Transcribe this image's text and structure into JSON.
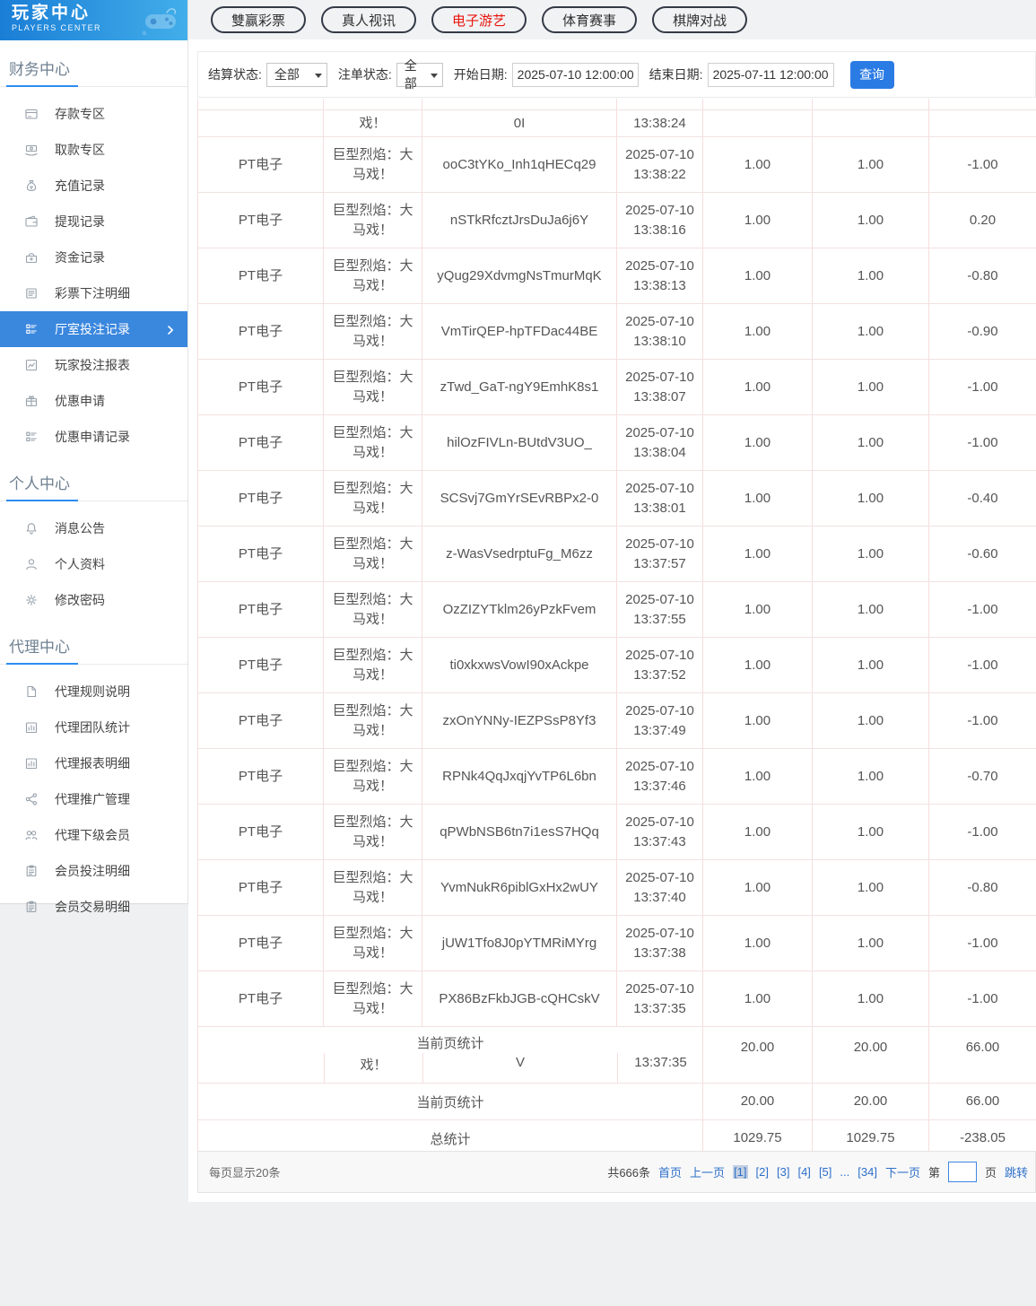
{
  "logo": {
    "title": "玩家中心",
    "subtitle": "PLAYERS CENTER"
  },
  "colors": {
    "brand_gradient_start": "#1a7ed6",
    "brand_gradient_end": "#42aeea",
    "active_sidebar_blue": "#3a87de",
    "accent_blue": "#2d8cf0",
    "search_button_blue": "#2b7be4",
    "nav_active_red": "#e8150c",
    "link_blue": "#2d6fc8",
    "table_border_pink": "#f6dede"
  },
  "top_nav": [
    {
      "name": "lottery",
      "label": "雙赢彩票",
      "active": false
    },
    {
      "name": "live-casino",
      "label": "真人视讯",
      "active": false
    },
    {
      "name": "electronic-games",
      "label": "电子游艺",
      "active": true
    },
    {
      "name": "sports",
      "label": "体育赛事",
      "active": false
    },
    {
      "name": "board-games",
      "label": "棋牌对战",
      "active": false
    }
  ],
  "filters": {
    "settle_status_label": "结算状态:",
    "settle_status_value": "全部",
    "order_status_label": "注单状态:",
    "order_status_value": "全部",
    "start_date_label": "开始日期:",
    "start_date_value": "2025-07-10 12:00:00",
    "end_date_label": "结束日期:",
    "end_date_value": "2025-07-11 12:00:00",
    "search_button": "查询"
  },
  "sidebar": {
    "sections": [
      {
        "title": "财务中心",
        "items": [
          {
            "name": "deposit-zone",
            "icon": "card-icon",
            "label": "存款专区"
          },
          {
            "name": "withdraw-zone",
            "icon": "hand-money-icon",
            "label": "取款专区"
          },
          {
            "name": "recharge-records",
            "icon": "moneybag-icon",
            "label": "充值记录"
          },
          {
            "name": "withdraw-records",
            "icon": "wallet-icon",
            "label": "提现记录"
          },
          {
            "name": "funds-records",
            "icon": "purse-icon",
            "label": "资金记录"
          },
          {
            "name": "lottery-bet-details",
            "icon": "document-icon",
            "label": "彩票下注明细"
          },
          {
            "name": "hall-bet-records",
            "icon": "list-icon",
            "label": "厅室投注记录",
            "active": true
          },
          {
            "name": "player-bet-report",
            "icon": "chart-icon",
            "label": "玩家投注报表"
          },
          {
            "name": "promo-apply",
            "icon": "gift-icon",
            "label": "优惠申请"
          },
          {
            "name": "promo-apply-records",
            "icon": "list-icon",
            "label": "优惠申请记录"
          }
        ]
      },
      {
        "title": "个人中心",
        "items": [
          {
            "name": "messages",
            "icon": "bell-icon",
            "label": "消息公告"
          },
          {
            "name": "profile",
            "icon": "user-icon",
            "label": "个人资料"
          },
          {
            "name": "change-password",
            "icon": "gear-icon",
            "label": "修改密码"
          }
        ]
      },
      {
        "title": "代理中心",
        "items": [
          {
            "name": "agent-rules",
            "icon": "file-icon",
            "label": "代理规则说明"
          },
          {
            "name": "agent-team-stats",
            "icon": "framed-chart-icon",
            "label": "代理团队统计"
          },
          {
            "name": "agent-report-details",
            "icon": "framed-chart-icon",
            "label": "代理报表明细"
          },
          {
            "name": "agent-promotion",
            "icon": "share-icon",
            "label": "代理推广管理"
          },
          {
            "name": "agent-sub-members",
            "icon": "users-icon",
            "label": "代理下级会员"
          },
          {
            "name": "member-bet-details",
            "icon": "clipboard-icon",
            "label": "会员投注明细"
          },
          {
            "name": "member-trade-details",
            "icon": "clipboard-icon",
            "label": "会员交易明细"
          }
        ]
      }
    ]
  },
  "table": {
    "row_shared": {
      "platform": "PT电子",
      "game": "巨型烈焰：大马戏！",
      "date": "2025-07-10",
      "bet": "1.00",
      "valid": "1.00"
    },
    "partial_row": {
      "game_fragment": "戏！",
      "order_fragment": "0I",
      "time_fragment": "13:38:24"
    },
    "rows": [
      {
        "order_id": "ooC3tYKo_Inh1qHECq29",
        "time": "13:38:22",
        "result": "-1.00"
      },
      {
        "order_id": "nSTkRfcztJrsDuJa6j6Y",
        "time": "13:38:16",
        "result": "0.20"
      },
      {
        "order_id": "yQug29XdvmgNsTmurMqK",
        "time": "13:38:13",
        "result": "-0.80"
      },
      {
        "order_id": "VmTirQEP-hpTFDac44BE",
        "time": "13:38:10",
        "result": "-0.90"
      },
      {
        "order_id": "zTwd_GaT-ngY9EmhK8s1",
        "time": "13:38:07",
        "result": "-1.00"
      },
      {
        "order_id": "hilOzFIVLn-BUtdV3UO_",
        "time": "13:38:04",
        "result": "-1.00"
      },
      {
        "order_id": "SCSvj7GmYrSEvRBPx2-0",
        "time": "13:38:01",
        "result": "-0.40"
      },
      {
        "order_id": "z-WasVsedrptuFg_M6zz",
        "time": "13:37:57",
        "result": "-0.60"
      },
      {
        "order_id": "OzZIZYTklm26yPzkFvem",
        "time": "13:37:55",
        "result": "-1.00"
      },
      {
        "order_id": "ti0xkxwsVowI90xAckpe",
        "time": "13:37:52",
        "result": "-1.00"
      },
      {
        "order_id": "zxOnYNNy-IEZPSsP8Yf3",
        "time": "13:37:49",
        "result": "-1.00"
      },
      {
        "order_id": "RPNk4QqJxqjYvTP6L6bn",
        "time": "13:37:46",
        "result": "-0.70"
      },
      {
        "order_id": "qPWbNSB6tn7i1esS7HQq",
        "time": "13:37:43",
        "result": "-1.00"
      },
      {
        "order_id": "YvmNukR6piblGxHx2wUY",
        "time": "13:37:40",
        "result": "-0.80"
      },
      {
        "order_id": "jUW1Tfo8J0pYTMRiMYrg",
        "time": "13:37:38",
        "result": "-1.00"
      },
      {
        "order_id": "PX86BzFkbJGB-cQHCskV",
        "time": "13:37:35",
        "result": "-1.00"
      }
    ],
    "glitch_row": {
      "label": "当前页统计",
      "bet": "20.00",
      "valid": "20.00",
      "result": "66.00",
      "ghost": {
        "game": "戏！",
        "order": "V",
        "time": "13:37:35"
      }
    },
    "page_total": {
      "label": "当前页统计",
      "bet": "20.00",
      "valid": "20.00",
      "result": "66.00"
    },
    "grand_total": {
      "label": "总统计",
      "bet": "1029.75",
      "valid": "1029.75",
      "result": "-238.05"
    }
  },
  "pagination": {
    "page_size_text": "每页显示20条",
    "total_text": "共666条",
    "links": [
      {
        "name": "first",
        "label": "首页"
      },
      {
        "name": "prev",
        "label": "上一页"
      },
      {
        "name": "page-1",
        "label": "[1]",
        "current": true
      },
      {
        "name": "page-2",
        "label": "[2]"
      },
      {
        "name": "page-3",
        "label": "[3]"
      },
      {
        "name": "page-4",
        "label": "[4]"
      },
      {
        "name": "page-5",
        "label": "[5]"
      },
      {
        "name": "ellipsis",
        "label": "...",
        "type": "ellipsis"
      },
      {
        "name": "page-34",
        "label": "[34]"
      },
      {
        "name": "next",
        "label": "下一页"
      }
    ],
    "jump_prefix": "第",
    "jump_input_value": "",
    "jump_suffix": "页",
    "jump_button": "跳转",
    "current_page": "1"
  }
}
